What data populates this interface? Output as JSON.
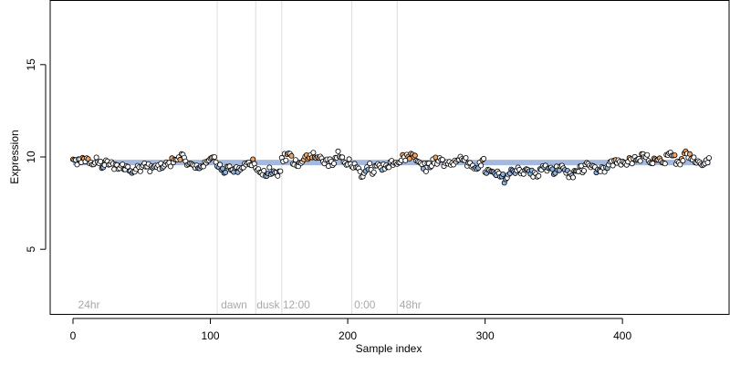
{
  "chart_data": {
    "type": "scatter",
    "title": "",
    "xlabel": "Sample index",
    "ylabel": "Expression",
    "xlim": [
      0,
      465
    ],
    "ylim": [
      1.5,
      18.5
    ],
    "xticks": [
      0,
      100,
      200,
      300,
      400
    ],
    "yticks": [
      5,
      10,
      15
    ],
    "grid": false,
    "legend": "none",
    "reference_line": {
      "y": 9.7,
      "color": "#8fa8d6"
    },
    "phase_lines": [
      105,
      133,
      152,
      203,
      236
    ],
    "phase_labels": [
      {
        "x": 3,
        "text": "24hr"
      },
      {
        "x": 107,
        "text": "dawn"
      },
      {
        "x": 133,
        "text": "dusk"
      },
      {
        "x": 152,
        "text": "12:00"
      },
      {
        "x": 204,
        "text": "0:00"
      },
      {
        "x": 237,
        "text": "48hr"
      }
    ],
    "colors": {
      "high": "#f4a460",
      "low": "#8fb3e0",
      "neutral": "#ffffff",
      "phase_line": "#dcdcdc",
      "phase_text": "#a9a9a9",
      "axis": "#000000"
    },
    "segments": [
      {
        "start": 0,
        "end": 40,
        "values": [
          9.8,
          9.7,
          9.9,
          9.6,
          9.8,
          9.5,
          9.7,
          9.4,
          9.6,
          9.3
        ]
      },
      {
        "start": 40,
        "end": 70,
        "values": [
          9.5,
          9.3,
          9.4,
          9.6,
          9.3,
          9.5,
          9.4,
          9.6
        ]
      },
      {
        "start": 70,
        "end": 105,
        "values": [
          9.6,
          9.9,
          10.1,
          9.8,
          9.5,
          9.3,
          9.6,
          10.0,
          9.8
        ]
      },
      {
        "start": 105,
        "end": 133,
        "values": [
          9.5,
          9.3,
          9.4,
          9.2,
          9.5,
          9.6,
          9.8
        ]
      },
      {
        "start": 133,
        "end": 152,
        "values": [
          9.4,
          9.2,
          9.0,
          9.3,
          8.9,
          9.1
        ]
      },
      {
        "start": 152,
        "end": 203,
        "values": [
          9.9,
          10.1,
          9.7,
          9.5,
          10.0,
          10.2,
          9.9,
          9.8,
          9.6,
          10.1,
          9.8,
          9.7
        ]
      },
      {
        "start": 203,
        "end": 236,
        "values": [
          9.7,
          9.3,
          9.0,
          9.5,
          9.2,
          9.6,
          9.4,
          9.7,
          9.8
        ]
      },
      {
        "start": 236,
        "end": 300,
        "values": [
          9.8,
          10.0,
          10.1,
          9.8,
          9.4,
          9.7,
          9.9,
          9.5,
          9.8,
          9.9,
          9.6,
          9.5,
          9.7
        ]
      },
      {
        "start": 300,
        "end": 330,
        "values": [
          9.3,
          9.1,
          9.0,
          8.8,
          9.2,
          9.4,
          9.1
        ]
      },
      {
        "start": 330,
        "end": 390,
        "values": [
          9.3,
          9.0,
          9.4,
          9.2,
          9.5,
          8.9,
          9.3,
          9.6,
          9.2,
          9.4
        ]
      },
      {
        "start": 390,
        "end": 430,
        "values": [
          9.5,
          9.8,
          9.7,
          9.9,
          10.0,
          9.8,
          9.7
        ]
      },
      {
        "start": 430,
        "end": 464,
        "values": [
          9.8,
          10.1,
          9.7,
          10.2,
          9.9,
          9.6,
          9.9
        ]
      }
    ]
  }
}
